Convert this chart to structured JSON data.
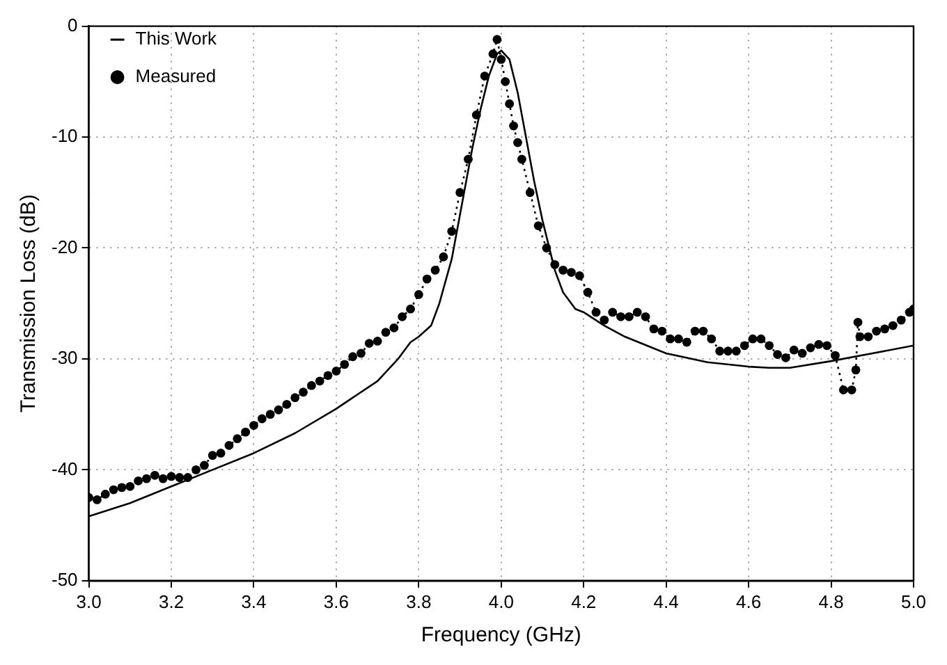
{
  "chart_data": {
    "type": "line",
    "xlabel": "Frequency (GHz)",
    "ylabel": "Transmission Loss (dB)",
    "xlim": [
      3.0,
      5.0
    ],
    "xticks": [
      {
        "value": 3.0,
        "label": "3.0"
      },
      {
        "value": 3.2,
        "label": "3.2"
      },
      {
        "value": 3.4,
        "label": "3.4"
      },
      {
        "value": 3.6,
        "label": "3.6"
      },
      {
        "value": 3.8,
        "label": "3.8"
      },
      {
        "value": 4.0,
        "label": "4.0"
      },
      {
        "value": 4.2,
        "label": "4.2"
      },
      {
        "value": 4.4,
        "label": "4.4"
      },
      {
        "value": 4.6,
        "label": "4.6"
      },
      {
        "value": 4.8,
        "label": "4.8"
      },
      {
        "value": 5.0,
        "label": "5.0"
      }
    ],
    "ylim": [
      -50,
      0
    ],
    "yticks": [
      -50,
      -40,
      -30,
      -20,
      -10,
      0
    ],
    "grid": true,
    "legend": "top left",
    "series": [
      {
        "name": "This Work",
        "color": "#000000",
        "marker": "none",
        "line_style": "solid",
        "x": [
          3.0,
          3.1,
          3.2,
          3.3,
          3.4,
          3.5,
          3.6,
          3.7,
          3.75,
          3.78,
          3.8,
          3.83,
          3.85,
          3.88,
          3.9,
          3.93,
          3.95,
          3.97,
          3.99,
          4.0,
          4.02,
          4.04,
          4.06,
          4.08,
          4.1,
          4.13,
          4.15,
          4.18,
          4.2,
          4.25,
          4.3,
          4.4,
          4.5,
          4.6,
          4.65,
          4.7,
          4.8,
          4.9,
          5.0
        ],
        "values": [
          -44.2,
          -43,
          -41.5,
          -40,
          -38.5,
          -36.7,
          -34.5,
          -32,
          -30,
          -28.5,
          -28,
          -27,
          -25,
          -21,
          -17,
          -11,
          -7.5,
          -4.5,
          -2.5,
          -2.2,
          -3,
          -6,
          -10,
          -14,
          -17.5,
          -22,
          -24,
          -25.5,
          -25.8,
          -27,
          -28,
          -29.5,
          -30.3,
          -30.7,
          -30.8,
          -30.8,
          -30.2,
          -29.5,
          -28.8
        ]
      },
      {
        "name": "Measured",
        "color": "#000000",
        "marker": "circle",
        "line_style": "dotted",
        "x": [
          3.0,
          3.02,
          3.04,
          3.06,
          3.08,
          3.1,
          3.12,
          3.14,
          3.16,
          3.18,
          3.2,
          3.22,
          3.24,
          3.26,
          3.28,
          3.3,
          3.32,
          3.34,
          3.36,
          3.38,
          3.4,
          3.42,
          3.44,
          3.46,
          3.48,
          3.5,
          3.52,
          3.54,
          3.56,
          3.58,
          3.6,
          3.62,
          3.64,
          3.66,
          3.68,
          3.7,
          3.72,
          3.74,
          3.76,
          3.78,
          3.8,
          3.82,
          3.84,
          3.86,
          3.88,
          3.9,
          3.92,
          3.94,
          3.96,
          3.98,
          3.99,
          4.0,
          4.01,
          4.02,
          4.03,
          4.04,
          4.05,
          4.07,
          4.09,
          4.11,
          4.13,
          4.15,
          4.17,
          4.19,
          4.21,
          4.23,
          4.25,
          4.27,
          4.29,
          4.31,
          4.33,
          4.35,
          4.37,
          4.39,
          4.41,
          4.43,
          4.45,
          4.47,
          4.49,
          4.51,
          4.53,
          4.55,
          4.57,
          4.59,
          4.61,
          4.63,
          4.65,
          4.67,
          4.69,
          4.71,
          4.73,
          4.75,
          4.77,
          4.79,
          4.81,
          4.83,
          4.85,
          4.86,
          4.865,
          4.87,
          4.89,
          4.91,
          4.93,
          4.95,
          4.97,
          4.99,
          5.0
        ],
        "values": [
          -42.5,
          -42.7,
          -42.2,
          -41.8,
          -41.6,
          -41.5,
          -41,
          -40.8,
          -40.5,
          -40.8,
          -40.6,
          -40.7,
          -40.7,
          -40,
          -39.6,
          -38.7,
          -38.5,
          -37.8,
          -37.2,
          -36.6,
          -36,
          -35.4,
          -35,
          -34.6,
          -34.1,
          -33.5,
          -33,
          -32.4,
          -32,
          -31.5,
          -31.1,
          -30.5,
          -29.8,
          -29.5,
          -28.6,
          -28.4,
          -27.6,
          -27.2,
          -26.2,
          -25.5,
          -24.2,
          -22.8,
          -22,
          -20.8,
          -18.5,
          -15,
          -12,
          -8,
          -4.5,
          -2.5,
          -1.2,
          -3,
          -5,
          -7,
          -9,
          -10.5,
          -12,
          -15,
          -18,
          -20,
          -21.5,
          -22,
          -22.2,
          -22.5,
          -24,
          -25.8,
          -26.5,
          -25.8,
          -26.2,
          -26.2,
          -25.8,
          -26.2,
          -27.3,
          -27.5,
          -28.2,
          -28.2,
          -28.5,
          -27.5,
          -27.5,
          -28.2,
          -29.3,
          -29.3,
          -29.3,
          -28.8,
          -28.2,
          -28.2,
          -28.8,
          -29.6,
          -29.9,
          -29.2,
          -29.5,
          -29,
          -28.7,
          -28.8,
          -29.7,
          -32.8,
          -32.8,
          -31,
          -26.7,
          -28,
          -28,
          -27.5,
          -27.3,
          -27,
          -26.5,
          -25.8,
          -25.5
        ]
      }
    ]
  }
}
